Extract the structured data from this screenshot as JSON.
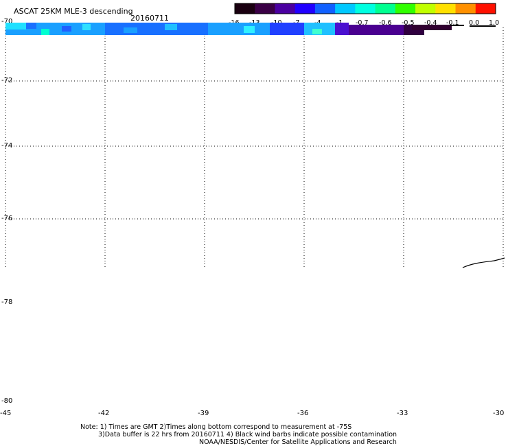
{
  "title": "ASCAT 25KM MLE-3 descending",
  "date": "20160711",
  "colorbar": {
    "labels": [
      "-16",
      "-13",
      "-10",
      "-7",
      "-4",
      "-1",
      "-0.7",
      "-0.6",
      "-0.5",
      "-0.4",
      "-0.1",
      "0.0",
      "1.0"
    ],
    "colors": [
      "#1a0010",
      "#3a0045",
      "#4a00a0",
      "#2000ff",
      "#1060ff",
      "#00c8ff",
      "#00ffe0",
      "#00ff90",
      "#30ff00",
      "#c0ff00",
      "#ffe000",
      "#ff9000",
      "#ff1000"
    ]
  },
  "axes": {
    "lat_labels": [
      "-70",
      "-72",
      "-74",
      "-76",
      "-78",
      "-80"
    ],
    "lon_labels": [
      "-45",
      "-42",
      "-39",
      "-36",
      "-33",
      "-30"
    ]
  },
  "notes": {
    "line1": "Note: 1) Times are GMT 2)Times along bottom correspond to measurement at -75S",
    "line2": "3)Data buffer is 22 hrs from 20160711 4) Black wind barbs indicate possible contamination",
    "line3": "NOAA/NESDIS/Center for Satellite Applications and Research"
  }
}
